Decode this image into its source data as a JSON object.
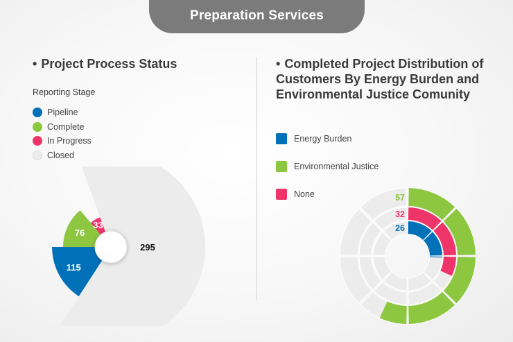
{
  "header": {
    "title": "Preparation Services"
  },
  "left": {
    "title": "Project Process Status",
    "legend_heading": "Reporting Stage",
    "legend": [
      {
        "label": "Pipeline",
        "color": "#0070b8"
      },
      {
        "label": "Complete",
        "color": "#8dc63f"
      },
      {
        "label": "In Progress",
        "color": "#ee3468"
      },
      {
        "label": "Closed",
        "color": "#ececec"
      }
    ]
  },
  "right": {
    "title": "Completed Project Distribution of Customers By Energy Burden and Environmental Justice Comunity",
    "legend": [
      {
        "label": "Energy Burden",
        "color": "#0070b8"
      },
      {
        "label": "Environmental Justice",
        "color": "#8dc63f"
      },
      {
        "label": "None",
        "color": "#ee3468"
      }
    ]
  },
  "chart_data": [
    {
      "type": "pie",
      "subtype": "polar-area",
      "title": "Project Process Status",
      "categories": [
        "Pipeline",
        "Complete",
        "In Progress",
        "Closed"
      ],
      "values": [
        115,
        76,
        33,
        295
      ],
      "colors": [
        "#0070b8",
        "#8dc63f",
        "#ee3468",
        "#ececec"
      ]
    },
    {
      "type": "pie",
      "subtype": "radial-bar",
      "title": "Completed Project Distribution of Customers By Energy Burden and Environmental Justice Comunity",
      "categories": [
        "Energy Burden",
        "None",
        "Environmental Justice"
      ],
      "values": [
        26,
        32,
        57
      ],
      "colors": [
        "#0070b8",
        "#ee3468",
        "#8dc63f"
      ],
      "max": 100
    }
  ]
}
